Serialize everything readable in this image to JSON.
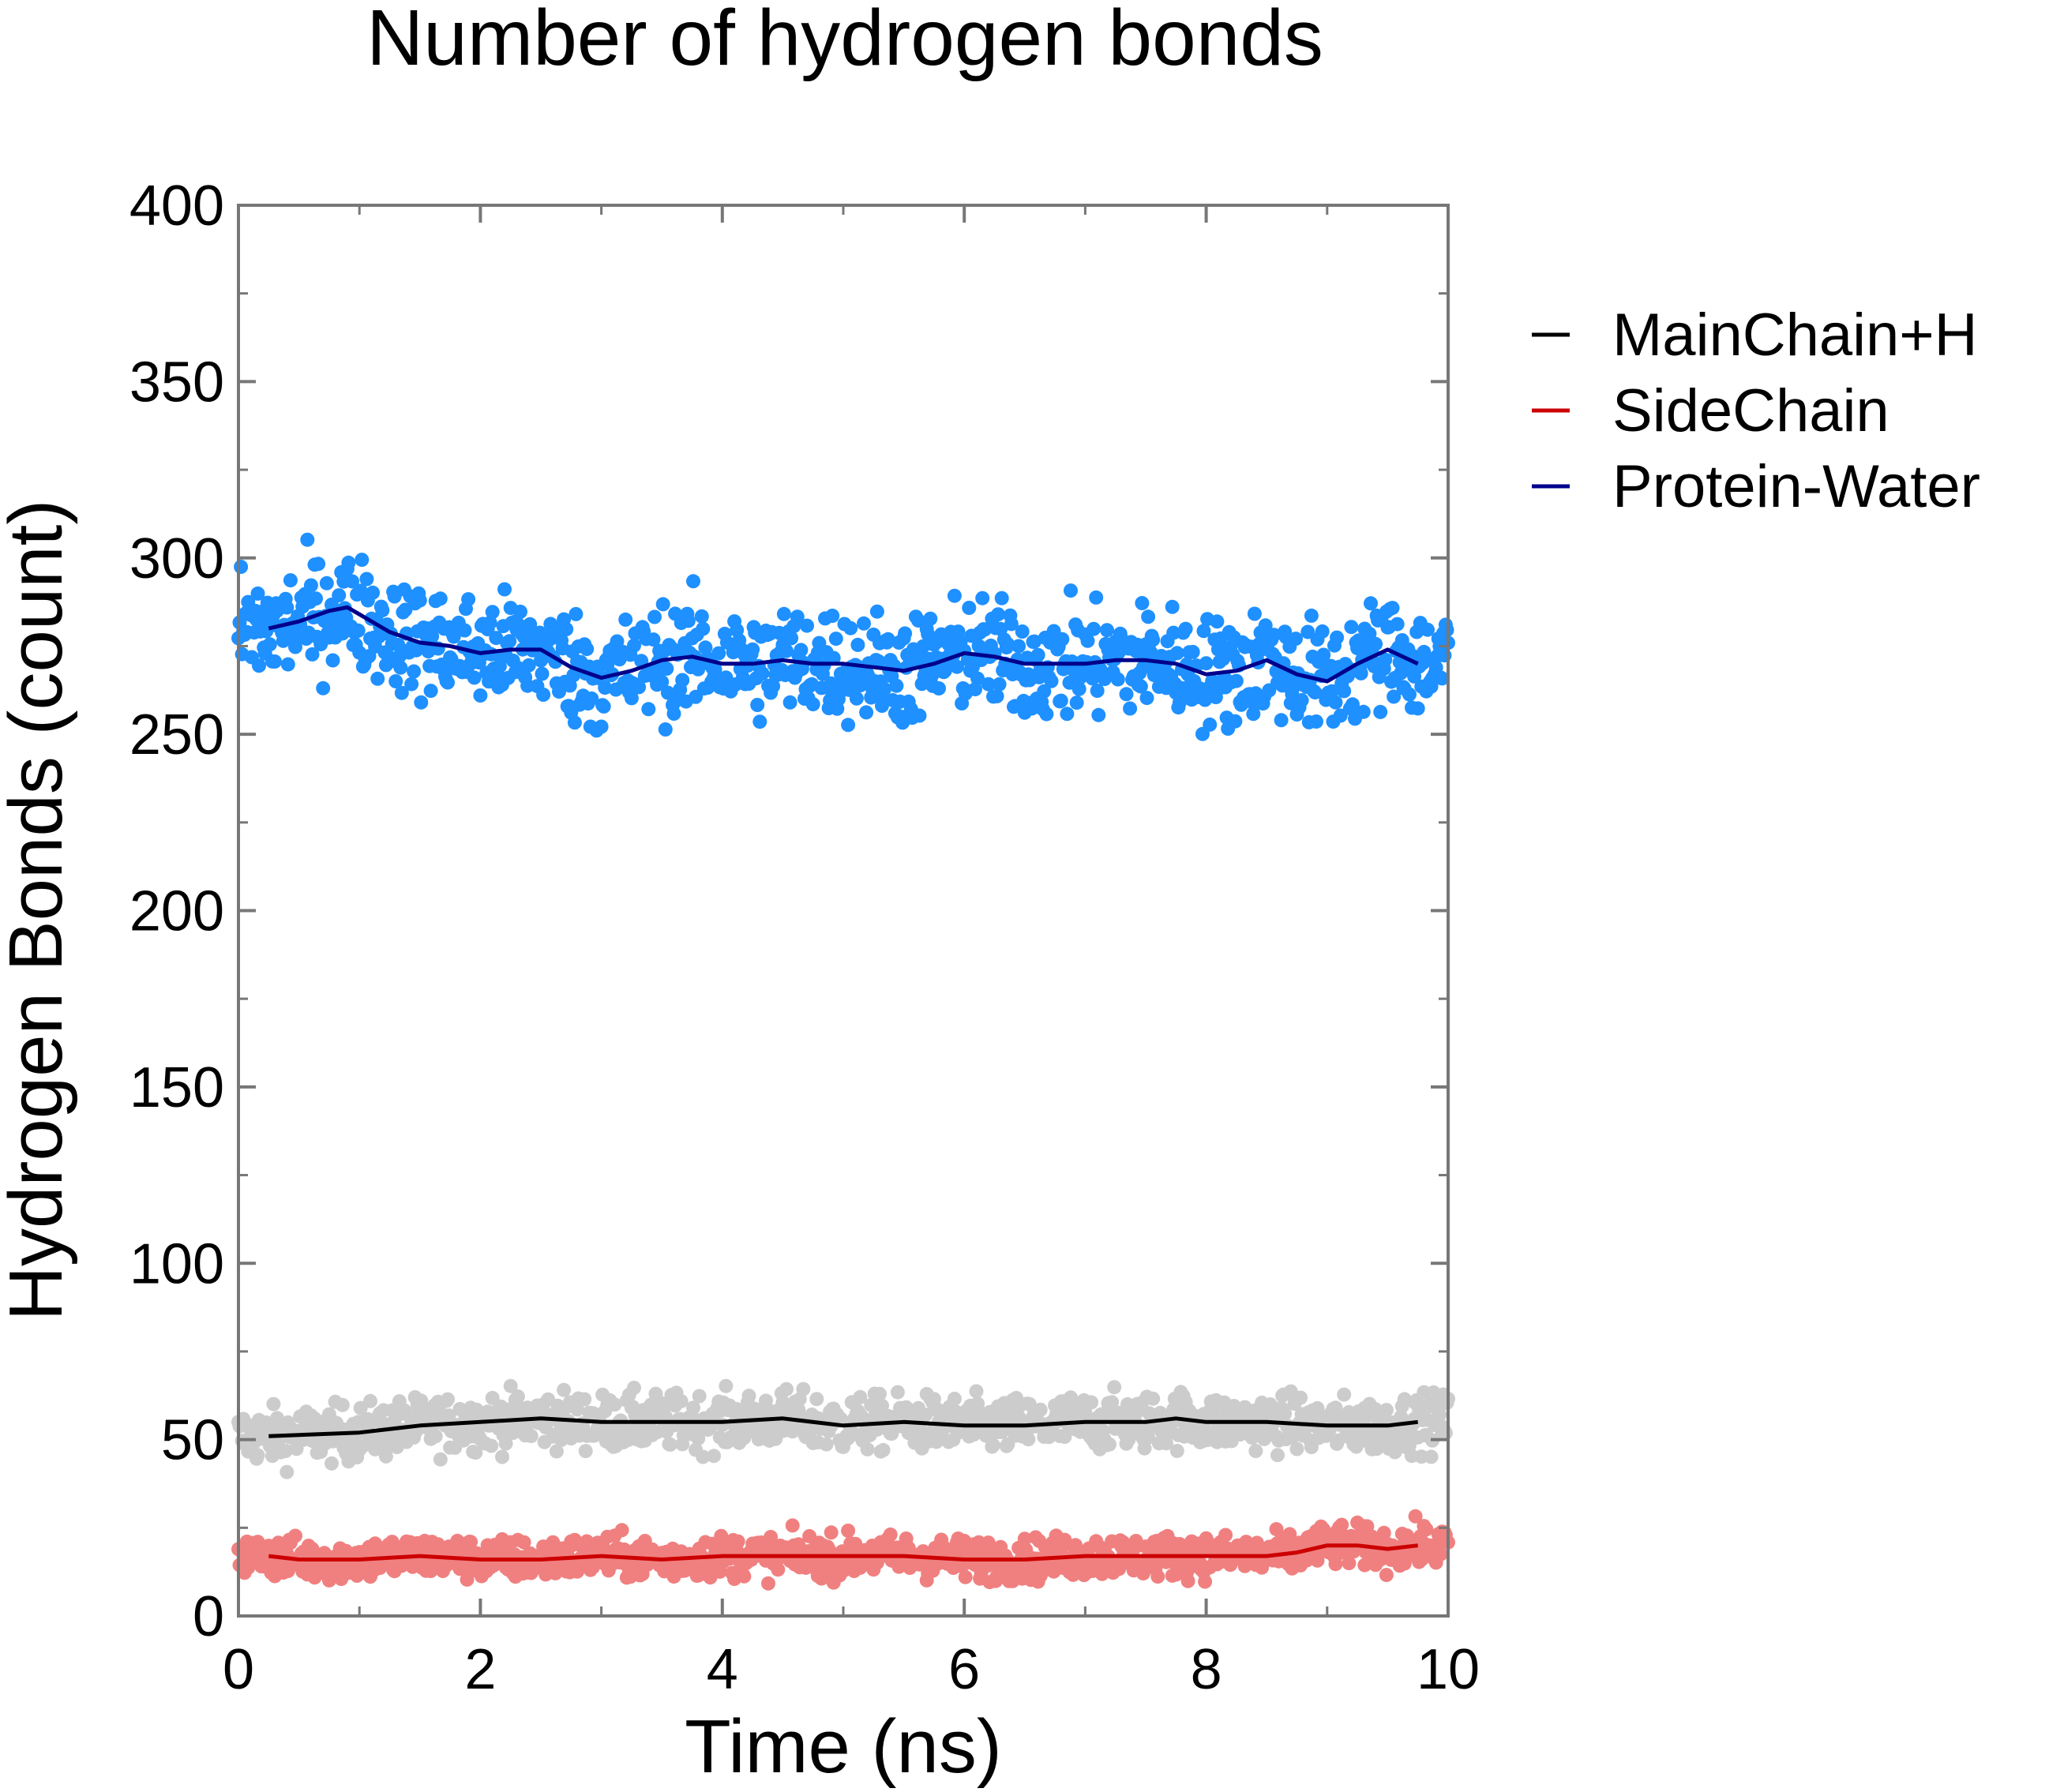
{
  "chart_data": {
    "type": "scatter",
    "title": "Number of hydrogen bonds",
    "xlabel": "Time (ns)",
    "ylabel": "Hydrogen Bonds (count)",
    "xlim": [
      0,
      10
    ],
    "ylim": [
      0,
      400
    ],
    "x_ticks": [
      "0",
      "2",
      "4",
      "6",
      "8",
      "10"
    ],
    "y_ticks": [
      "0",
      "50",
      "100",
      "150",
      "200",
      "250",
      "300",
      "350",
      "400"
    ],
    "grid": false,
    "legend_position": "outside-right",
    "series": [
      {
        "name": "MainChain+H",
        "line_color": "#000000",
        "point_color": "#cccccc",
        "point_spread": 4,
        "x": [
          0.25,
          1.0,
          1.5,
          2.0,
          2.5,
          3.0,
          3.5,
          4.0,
          4.5,
          5.0,
          5.5,
          6.0,
          6.5,
          7.0,
          7.5,
          7.75,
          8.0,
          8.5,
          9.0,
          9.5,
          9.75
        ],
        "y": [
          51,
          52,
          54,
          55,
          56,
          55,
          55,
          55,
          56,
          54,
          55,
          54,
          54,
          55,
          55,
          56,
          55,
          55,
          54,
          54,
          55
        ]
      },
      {
        "name": "SideChain",
        "line_color": "#cc0000",
        "point_color": "#f08080",
        "point_spread": 3,
        "x": [
          0.25,
          0.5,
          1.0,
          1.5,
          2.0,
          2.5,
          3.0,
          3.5,
          4.0,
          4.5,
          5.0,
          5.5,
          6.0,
          6.5,
          7.0,
          7.5,
          8.0,
          8.5,
          8.75,
          9.0,
          9.25,
          9.5,
          9.75
        ],
        "y": [
          17,
          16,
          16,
          17,
          16,
          16,
          17,
          16,
          17,
          17,
          17,
          17,
          16,
          16,
          17,
          17,
          17,
          17,
          18,
          20,
          20,
          19,
          20
        ]
      },
      {
        "name": "Protein-Water",
        "line_color": "#00008b",
        "point_color": "#1e90ff",
        "point_spread": 8,
        "x": [
          0.25,
          0.5,
          0.75,
          0.9,
          1.0,
          1.25,
          1.5,
          1.75,
          2.0,
          2.25,
          2.5,
          2.75,
          3.0,
          3.25,
          3.5,
          3.75,
          4.0,
          4.25,
          4.5,
          4.75,
          5.0,
          5.25,
          5.5,
          5.75,
          6.0,
          6.25,
          6.5,
          6.75,
          7.0,
          7.25,
          7.5,
          7.75,
          8.0,
          8.25,
          8.5,
          8.75,
          9.0,
          9.25,
          9.5,
          9.75
        ],
        "y": [
          280,
          282,
          285,
          286,
          284,
          279,
          276,
          275,
          273,
          274,
          274,
          269,
          266,
          268,
          271,
          272,
          270,
          270,
          271,
          270,
          270,
          269,
          268,
          270,
          273,
          272,
          270,
          270,
          270,
          271,
          271,
          270,
          267,
          268,
          271,
          267,
          265,
          270,
          274,
          270
        ]
      }
    ]
  }
}
